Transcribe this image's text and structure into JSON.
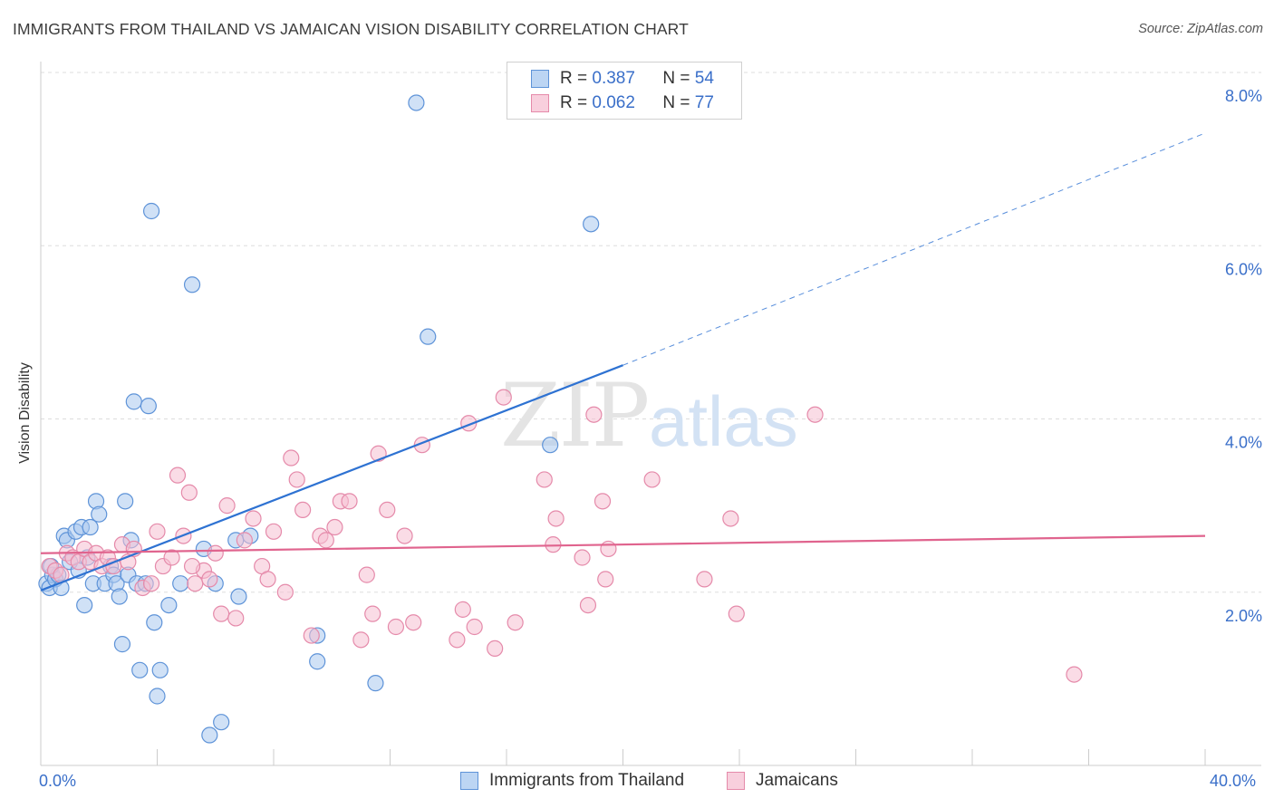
{
  "title": "IMMIGRANTS FROM THAILAND VS JAMAICAN VISION DISABILITY CORRELATION CHART",
  "source": "Source: ZipAtlas.com",
  "watermark": {
    "zip": "ZIP",
    "atlas": "atlas"
  },
  "colors": {
    "blue_fill": "#a9c8ef",
    "blue_stroke": "#5e93d8",
    "blue_line": "#2e72d2",
    "pink_fill": "#f6bfd1",
    "pink_stroke": "#e58aaa",
    "pink_line": "#e0648e",
    "value_text": "#3a6fc9",
    "grid": "#dddddd"
  },
  "legend": {
    "rows": [
      {
        "r_label": "R =",
        "r_value": "0.387",
        "n_label": "N =",
        "n_value": "54"
      },
      {
        "r_label": "R =",
        "r_value": "0.062",
        "n_label": "N =",
        "n_value": "77"
      }
    ]
  },
  "bottom_legend": [
    "Immigrants from Thailand",
    "Jamaicans"
  ],
  "chart_data": {
    "type": "scatter",
    "title": "IMMIGRANTS FROM THAILAND VS JAMAICAN VISION DISABILITY CORRELATION CHART",
    "xlabel": "",
    "ylabel": "Vision Disability",
    "xlim": [
      0,
      40
    ],
    "ylim": [
      0,
      8.0
    ],
    "x_tick_labels": [
      "0.0%",
      "40.0%"
    ],
    "y_ticks": [
      2.0,
      4.0,
      6.0,
      8.0
    ],
    "y_tick_labels": [
      "2.0%",
      "4.0%",
      "6.0%",
      "8.0%"
    ],
    "grid": "horizontal dashed",
    "legend_placement": "top-center",
    "series": [
      {
        "name": "Immigrants from Thailand",
        "r": 0.387,
        "n": 54,
        "trend": {
          "x": [
            0,
            20
          ],
          "y": [
            2.02,
            4.62
          ],
          "extended_to": [
            40,
            7.3
          ]
        },
        "points": [
          [
            0.2,
            2.1
          ],
          [
            0.3,
            2.05
          ],
          [
            0.4,
            2.2
          ],
          [
            0.5,
            2.15
          ],
          [
            0.6,
            2.2
          ],
          [
            0.7,
            2.05
          ],
          [
            0.8,
            2.65
          ],
          [
            0.9,
            2.6
          ],
          [
            1.0,
            2.35
          ],
          [
            1.2,
            2.7
          ],
          [
            1.3,
            2.25
          ],
          [
            1.4,
            2.75
          ],
          [
            1.5,
            1.85
          ],
          [
            1.6,
            2.4
          ],
          [
            1.7,
            2.75
          ],
          [
            1.8,
            2.1
          ],
          [
            1.9,
            3.05
          ],
          [
            2.0,
            2.9
          ],
          [
            2.2,
            2.1
          ],
          [
            2.4,
            2.3
          ],
          [
            2.5,
            2.2
          ],
          [
            2.6,
            2.1
          ],
          [
            2.7,
            1.95
          ],
          [
            2.8,
            1.4
          ],
          [
            2.9,
            3.05
          ],
          [
            3.0,
            2.2
          ],
          [
            3.1,
            2.6
          ],
          [
            3.2,
            4.2
          ],
          [
            3.3,
            2.1
          ],
          [
            3.4,
            1.1
          ],
          [
            3.6,
            2.1
          ],
          [
            3.7,
            4.15
          ],
          [
            3.8,
            6.4
          ],
          [
            3.9,
            1.65
          ],
          [
            4.0,
            0.8
          ],
          [
            4.1,
            1.1
          ],
          [
            4.4,
            1.85
          ],
          [
            4.8,
            2.1
          ],
          [
            5.2,
            5.55
          ],
          [
            5.6,
            2.5
          ],
          [
            5.8,
            0.35
          ],
          [
            6.0,
            2.1
          ],
          [
            6.2,
            0.5
          ],
          [
            6.7,
            2.6
          ],
          [
            6.8,
            1.95
          ],
          [
            7.2,
            2.65
          ],
          [
            9.5,
            1.5
          ],
          [
            9.5,
            1.2
          ],
          [
            11.5,
            0.95
          ],
          [
            12.9,
            7.65
          ],
          [
            13.3,
            4.95
          ],
          [
            17.5,
            3.7
          ],
          [
            18.9,
            6.25
          ],
          [
            0.35,
            2.3
          ]
        ]
      },
      {
        "name": "Jamaicans",
        "r": 0.062,
        "n": 77,
        "trend": {
          "x": [
            0,
            40
          ],
          "y": [
            2.45,
            2.65
          ]
        },
        "points": [
          [
            0.3,
            2.3
          ],
          [
            0.5,
            2.25
          ],
          [
            0.7,
            2.2
          ],
          [
            0.9,
            2.45
          ],
          [
            1.1,
            2.4
          ],
          [
            1.3,
            2.35
          ],
          [
            1.5,
            2.5
          ],
          [
            1.7,
            2.35
          ],
          [
            1.9,
            2.45
          ],
          [
            2.1,
            2.3
          ],
          [
            2.3,
            2.4
          ],
          [
            2.5,
            2.3
          ],
          [
            2.8,
            2.55
          ],
          [
            3.0,
            2.35
          ],
          [
            3.2,
            2.5
          ],
          [
            3.5,
            2.05
          ],
          [
            3.8,
            2.1
          ],
          [
            4.0,
            2.7
          ],
          [
            4.2,
            2.3
          ],
          [
            4.5,
            2.4
          ],
          [
            4.7,
            3.35
          ],
          [
            4.9,
            2.65
          ],
          [
            5.1,
            3.15
          ],
          [
            5.3,
            2.1
          ],
          [
            5.6,
            2.25
          ],
          [
            5.8,
            2.15
          ],
          [
            6.0,
            2.45
          ],
          [
            6.2,
            1.75
          ],
          [
            6.4,
            3.0
          ],
          [
            6.7,
            1.7
          ],
          [
            7.0,
            2.6
          ],
          [
            7.3,
            2.85
          ],
          [
            7.6,
            2.3
          ],
          [
            7.8,
            2.15
          ],
          [
            8.0,
            2.7
          ],
          [
            8.4,
            2.0
          ],
          [
            8.6,
            3.55
          ],
          [
            8.8,
            3.3
          ],
          [
            9.0,
            2.95
          ],
          [
            9.3,
            1.5
          ],
          [
            9.6,
            2.65
          ],
          [
            9.8,
            2.6
          ],
          [
            10.1,
            2.75
          ],
          [
            10.3,
            3.05
          ],
          [
            10.6,
            3.05
          ],
          [
            11.0,
            1.45
          ],
          [
            11.2,
            2.2
          ],
          [
            11.4,
            1.75
          ],
          [
            11.6,
            3.6
          ],
          [
            11.9,
            2.95
          ],
          [
            12.2,
            1.6
          ],
          [
            12.5,
            2.65
          ],
          [
            12.8,
            1.65
          ],
          [
            13.1,
            3.7
          ],
          [
            14.3,
            1.45
          ],
          [
            14.5,
            1.8
          ],
          [
            14.7,
            3.95
          ],
          [
            14.9,
            1.6
          ],
          [
            15.6,
            1.35
          ],
          [
            15.9,
            4.25
          ],
          [
            16.3,
            1.65
          ],
          [
            17.3,
            3.3
          ],
          [
            17.6,
            2.55
          ],
          [
            17.7,
            2.85
          ],
          [
            18.6,
            2.4
          ],
          [
            18.8,
            1.85
          ],
          [
            19.0,
            4.05
          ],
          [
            19.3,
            3.05
          ],
          [
            19.4,
            2.15
          ],
          [
            19.5,
            2.5
          ],
          [
            21.0,
            3.3
          ],
          [
            22.8,
            2.15
          ],
          [
            23.7,
            2.85
          ],
          [
            23.9,
            1.75
          ],
          [
            26.6,
            4.05
          ],
          [
            35.5,
            1.05
          ],
          [
            5.2,
            2.3
          ]
        ]
      }
    ]
  }
}
